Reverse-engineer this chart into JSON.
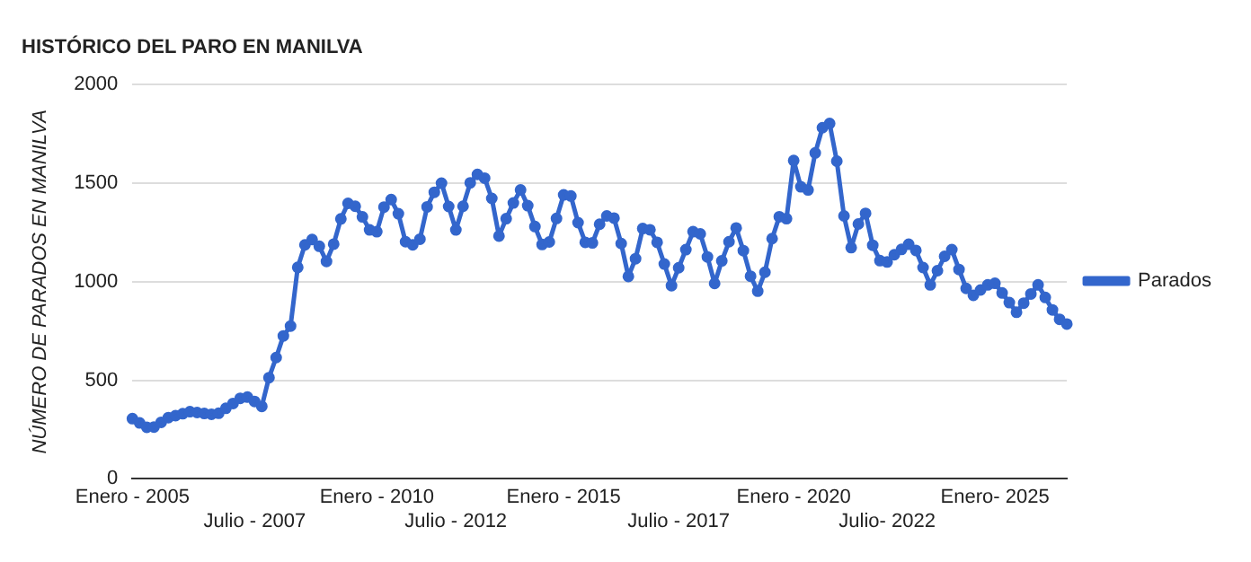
{
  "chart_data": {
    "type": "line",
    "title": "HISTÓRICO DEL PARO EN MANILVA",
    "ylabel": "NÚMERO DE PARADOS EN MANILVA",
    "categories": [
      "Enero - 2005",
      null,
      null,
      null,
      null,
      null,
      null,
      null,
      null,
      null,
      null,
      null,
      null,
      null,
      null,
      null,
      null,
      "Julio - 2007",
      null,
      null,
      null,
      null,
      null,
      null,
      null,
      null,
      null,
      null,
      null,
      null,
      null,
      null,
      null,
      null,
      "Enero - 2010",
      null,
      null,
      null,
      null,
      null,
      null,
      null,
      null,
      null,
      null,
      "Julio - 2012",
      null,
      null,
      null,
      null,
      null,
      null,
      null,
      null,
      null,
      null,
      null,
      null,
      null,
      null,
      "Enero - 2015",
      null,
      null,
      null,
      null,
      null,
      null,
      null,
      null,
      null,
      null,
      null,
      null,
      null,
      null,
      null,
      "Julio - 2017",
      null,
      null,
      null,
      null,
      null,
      null,
      null,
      null,
      null,
      null,
      null,
      null,
      null,
      null,
      null,
      "Enero - 2020",
      null,
      null,
      null,
      null,
      null,
      null,
      null,
      null,
      null,
      null,
      null,
      null,
      "Julio- 2022",
      null,
      null,
      null,
      null,
      null,
      null,
      null,
      null,
      null,
      null,
      null,
      null,
      null,
      null,
      "Enero- 2025",
      null,
      null,
      null,
      null,
      null,
      null,
      null,
      null,
      null,
      null
    ],
    "series": [
      {
        "name": "Parados",
        "color": "#3366cc",
        "values": [
          305,
          283,
          261,
          262,
          286,
          310,
          320,
          330,
          340,
          336,
          331,
          327,
          332,
          357,
          382,
          408,
          414,
          392,
          367,
          513,
          615,
          725,
          775,
          1073,
          1187,
          1214,
          1180,
          1103,
          1191,
          1319,
          1398,
          1383,
          1329,
          1263,
          1254,
          1379,
          1417,
          1345,
          1203,
          1187,
          1216,
          1380,
          1454,
          1500,
          1382,
          1263,
          1383,
          1502,
          1545,
          1526,
          1423,
          1232,
          1320,
          1400,
          1466,
          1386,
          1280,
          1189,
          1202,
          1321,
          1441,
          1435,
          1300,
          1200,
          1197,
          1292,
          1334,
          1323,
          1194,
          1027,
          1117,
          1270,
          1264,
          1200,
          1090,
          980,
          1071,
          1163,
          1254,
          1243,
          1126,
          991,
          1106,
          1203,
          1273,
          1158,
          1028,
          952,
          1048,
          1219,
          1330,
          1320,
          1615,
          1482,
          1466,
          1654,
          1782,
          1803,
          1612,
          1334,
          1173,
          1293,
          1347,
          1185,
          1107,
          1100,
          1137,
          1164,
          1190,
          1159,
          1072,
          984,
          1056,
          1129,
          1163,
          1062,
          966,
          931,
          958,
          984,
          992,
          943,
          894,
          845,
          891,
          938,
          984,
          920,
          857,
          809,
          785
        ]
      }
    ],
    "ylim": [
      0,
      2000
    ],
    "yticks": [
      0,
      500,
      1000,
      1500,
      2000
    ],
    "grid": "y",
    "legend": "right",
    "marker": "circle",
    "line_style": "solid"
  }
}
